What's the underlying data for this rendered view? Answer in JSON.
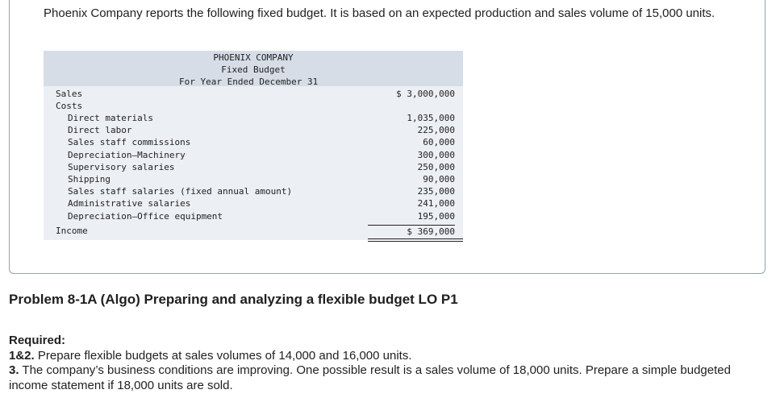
{
  "intro": "Phoenix Company reports the following fixed budget. It is based on an expected production and sales volume of 15,000 units.",
  "budget": {
    "company": "PHOENIX COMPANY",
    "statement": "Fixed Budget",
    "period": "For Year Ended December 31",
    "sales_label": "Sales",
    "sales_amount": "$ 3,000,000",
    "costs_label": "Costs",
    "costs": [
      {
        "label": "Direct materials",
        "amount": "1,035,000"
      },
      {
        "label": "Direct labor",
        "amount": "225,000"
      },
      {
        "label": "Sales staff commissions",
        "amount": "60,000"
      },
      {
        "label": "Depreciation—Machinery",
        "amount": "300,000"
      },
      {
        "label": "Supervisory salaries",
        "amount": "250,000"
      },
      {
        "label": "Shipping",
        "amount": "90,000"
      },
      {
        "label": "Sales staff salaries (fixed annual amount)",
        "amount": "235,000"
      },
      {
        "label": "Administrative salaries",
        "amount": "241,000"
      },
      {
        "label": "Depreciation—Office equipment",
        "amount": "195,000"
      }
    ],
    "income_label": "Income",
    "income_amount": "$ 369,000"
  },
  "problem_title": "Problem 8-1A (Algo) Preparing and analyzing a flexible budget LO P1",
  "required": {
    "heading": "Required:",
    "item1_num": "1&2.",
    "item1_text": "Prepare flexible budgets at sales volumes of 14,000 and 16,000 units.",
    "item2_num": "3.",
    "item2_text": "The company’s business conditions are improving. One possible result is a sales volume of 18,000 units. Prepare a simple budgeted income statement if 18,000 units are sold."
  }
}
